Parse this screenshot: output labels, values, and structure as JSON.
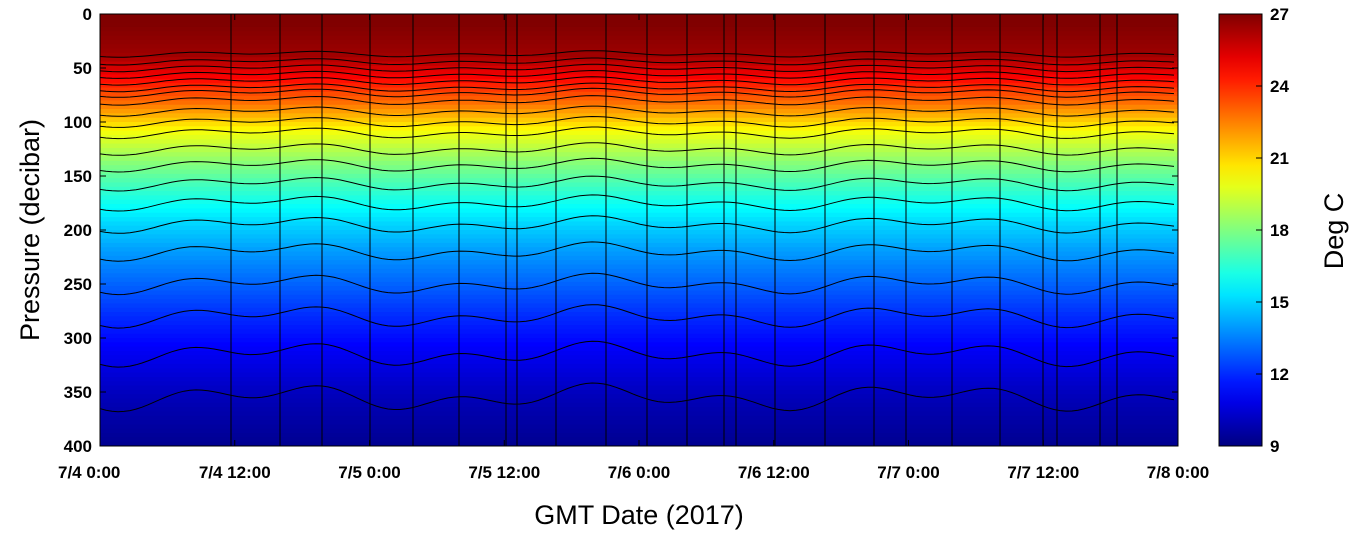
{
  "chart_data": {
    "type": "heatmap",
    "title": "",
    "xlabel": "GMT Date (2017)",
    "ylabel": "Pressure (decibar)",
    "colorbar_label": "Deg C",
    "x_range": [
      "2017-07-04 00:00",
      "2017-07-08 00:00"
    ],
    "x_ticks": [
      "7/4 0:00",
      "7/4 12:00",
      "7/5 0:00",
      "7/5 12:00",
      "7/6 0:00",
      "7/6 12:00",
      "7/7 0:00",
      "7/7 12:00",
      "7/8 0:00"
    ],
    "ylim": [
      400,
      0
    ],
    "y_ticks": [
      "0",
      "50",
      "100",
      "150",
      "200",
      "250",
      "300",
      "350",
      "400"
    ],
    "clim": [
      9,
      27
    ],
    "colorbar_ticks": [
      "9",
      "12",
      "15",
      "18",
      "21",
      "24",
      "27"
    ],
    "colormap": "jet",
    "contour_levels_degC": [
      26.5,
      26,
      25.5,
      25,
      24.5,
      24,
      23.5,
      23,
      22,
      21,
      20,
      19,
      18,
      17,
      16,
      15,
      14,
      13,
      12,
      11,
      10
    ],
    "contour_color": "#000000",
    "profile_lines": "vertical black lines marking individual profiles",
    "isotherm_depths_decibar": {
      "26.5": 37,
      "26": 44,
      "25.5": 50,
      "25": 56,
      "24.5": 62,
      "24": 68,
      "23.5": 73,
      "23": 80,
      "22": 90,
      "21": 100,
      "20": 110,
      "19": 125,
      "18": 140,
      "17": 157,
      "16": 175,
      "15": 195,
      "14": 220,
      "13": 250,
      "12": 280,
      "11": 315,
      "10": 355
    }
  }
}
